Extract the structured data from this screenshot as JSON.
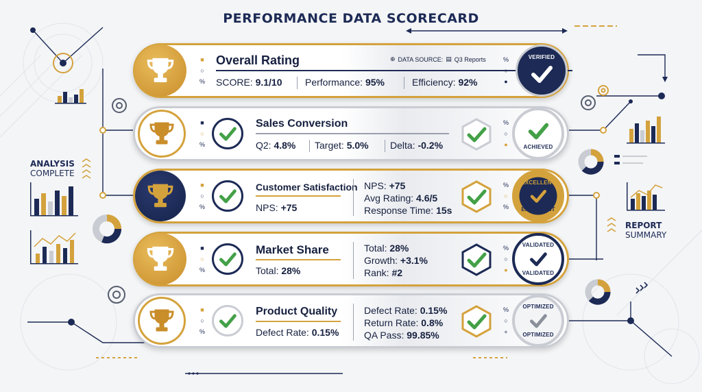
{
  "title": "PERFORMANCE DATA SCORECARD",
  "left_label": {
    "line1": "ANALYSIS",
    "line2": "COMPLETE"
  },
  "right_label": {
    "line1": "REPORT",
    "line2": "SUMMARY"
  },
  "colors": {
    "navy": "#1c2a55",
    "gold": "#d4a23c",
    "green": "#43a047",
    "silver": "#c9ccd2"
  },
  "rows": [
    {
      "title": "Overall Rating",
      "data_source": {
        "label": "DATA SOURCE:",
        "value": "Q3 Reports"
      },
      "stats": [
        {
          "label": "SCORE: ",
          "value": "9.1/10"
        },
        {
          "label": "Performance: ",
          "value": "95%"
        },
        {
          "label": "Efficiency: ",
          "value": "92%"
        }
      ],
      "badge": "VERIFIED"
    },
    {
      "title": "Sales Conversion",
      "stats": [
        {
          "label": "Q2: ",
          "value": "4.8%"
        },
        {
          "label": "Target: ",
          "value": "5.0%"
        },
        {
          "label": "Delta: ",
          "value": "-0.2%"
        }
      ],
      "badge": "ACHIEVED"
    },
    {
      "title": "Customer Satisfaction",
      "left_stat": {
        "label": "NPS: ",
        "value": "+75"
      },
      "right_stats": [
        {
          "label": "NPS: ",
          "value": "+75"
        },
        {
          "label": "Avg Rating: ",
          "value": "4.6/5"
        },
        {
          "label": "Response Time: ",
          "value": "15s"
        }
      ],
      "badge_top": "EXCELLENT",
      "badge_bottom": "EXCELLENT"
    },
    {
      "title": "Market Share",
      "left_stat": {
        "label": "Total: ",
        "value": "28%"
      },
      "right_stats": [
        {
          "label": "Total: ",
          "value": "28%"
        },
        {
          "label": "Growth: ",
          "value": "+3.1%"
        },
        {
          "label": "Rank: ",
          "value": "#2"
        }
      ],
      "badge_top": "VALIDATED",
      "badge_bottom": "VALIDATED"
    },
    {
      "title": "Product Quality",
      "left_stat": {
        "label": "Defect Rate: ",
        "value": "0.15%"
      },
      "right_stats": [
        {
          "label": "Defect Rate: ",
          "value": "0.15%"
        },
        {
          "label": "Return Rate: ",
          "value": "0.8%"
        },
        {
          "label": "QA Pass: ",
          "value": "99.85%"
        }
      ],
      "badge_top": "OPTIMIZED",
      "badge_bottom": "OPTIMIZED"
    }
  ],
  "icons": [
    "trophy-icon",
    "checkmark-icon",
    "hexagon-check-icon",
    "gear-icon",
    "bar-chart-icon",
    "donut-chart-icon",
    "globe-icon",
    "document-icon"
  ]
}
